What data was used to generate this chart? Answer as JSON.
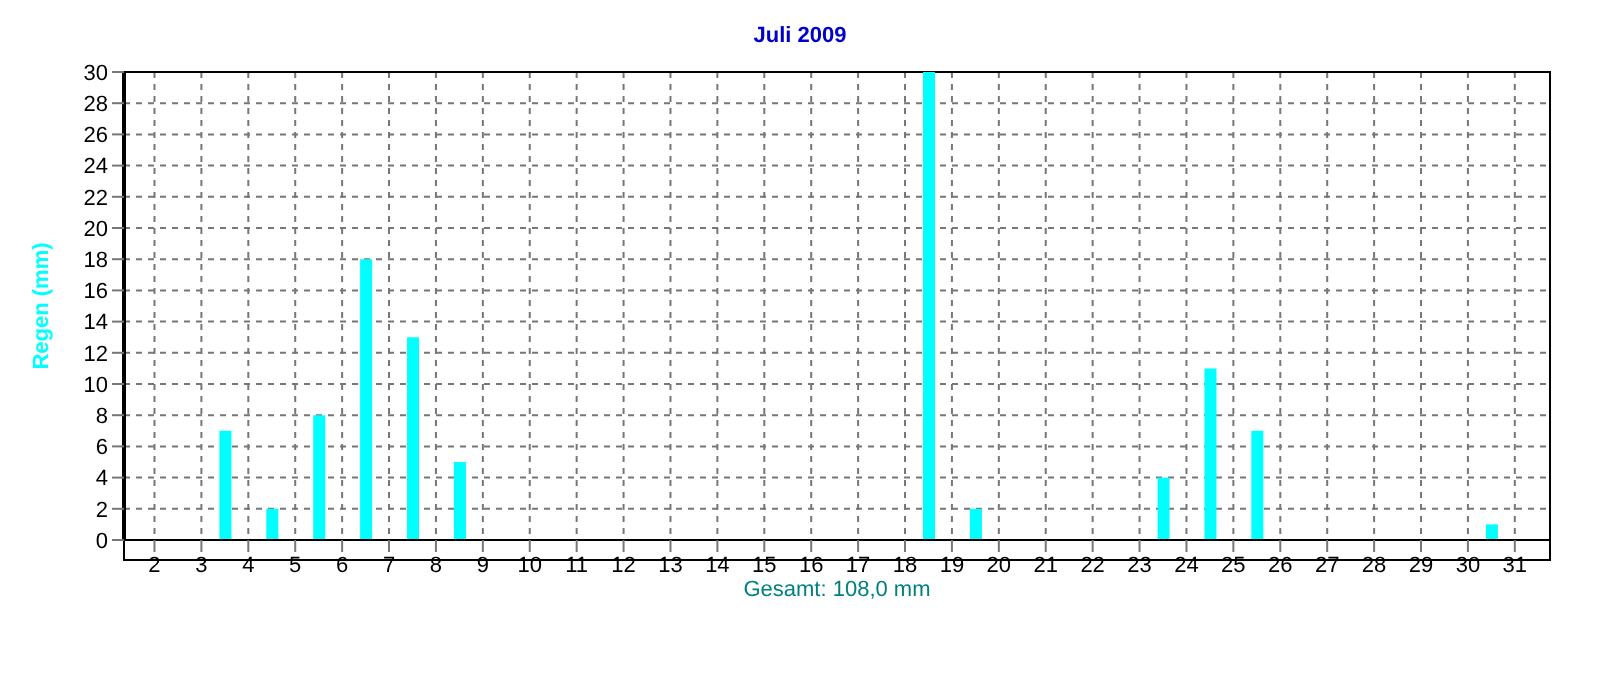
{
  "chart_data": {
    "type": "bar",
    "title": "Juli 2009",
    "xlabel": "Gesamt: 108,0 mm",
    "ylabel": "Regen  (mm)",
    "x": [
      1.5,
      2.5,
      3.5,
      4.5,
      5.5,
      6.5,
      7.5,
      8.5,
      9.5,
      10.5,
      11.5,
      12.5,
      13.5,
      14.5,
      15.5,
      16.5,
      17.5,
      18.5,
      19.5,
      20.5,
      21.5,
      22.5,
      23.5,
      24.5,
      25.5,
      26.5,
      27.5,
      28.5,
      29.5,
      30.5,
      31.5
    ],
    "values": [
      0,
      0,
      7,
      2,
      8,
      18,
      13,
      5,
      0,
      0,
      0,
      0,
      0,
      0,
      0,
      0,
      0,
      30,
      2,
      0,
      0,
      0,
      4,
      11,
      7,
      0,
      0,
      0,
      0,
      1,
      0
    ],
    "color": "#00ffff",
    "xlim": [
      1.35,
      31.75
    ],
    "xticks": [
      2,
      3,
      4,
      5,
      6,
      7,
      8,
      9,
      10,
      11,
      12,
      13,
      14,
      15,
      16,
      17,
      18,
      19,
      20,
      21,
      22,
      23,
      24,
      25,
      26,
      27,
      28,
      29,
      30,
      31
    ],
    "ylim": [
      0,
      30
    ],
    "yticks": [
      0,
      2,
      4,
      6,
      8,
      10,
      12,
      14,
      16,
      18,
      20,
      22,
      24,
      26,
      28,
      30
    ],
    "grid": true,
    "legend": false
  }
}
